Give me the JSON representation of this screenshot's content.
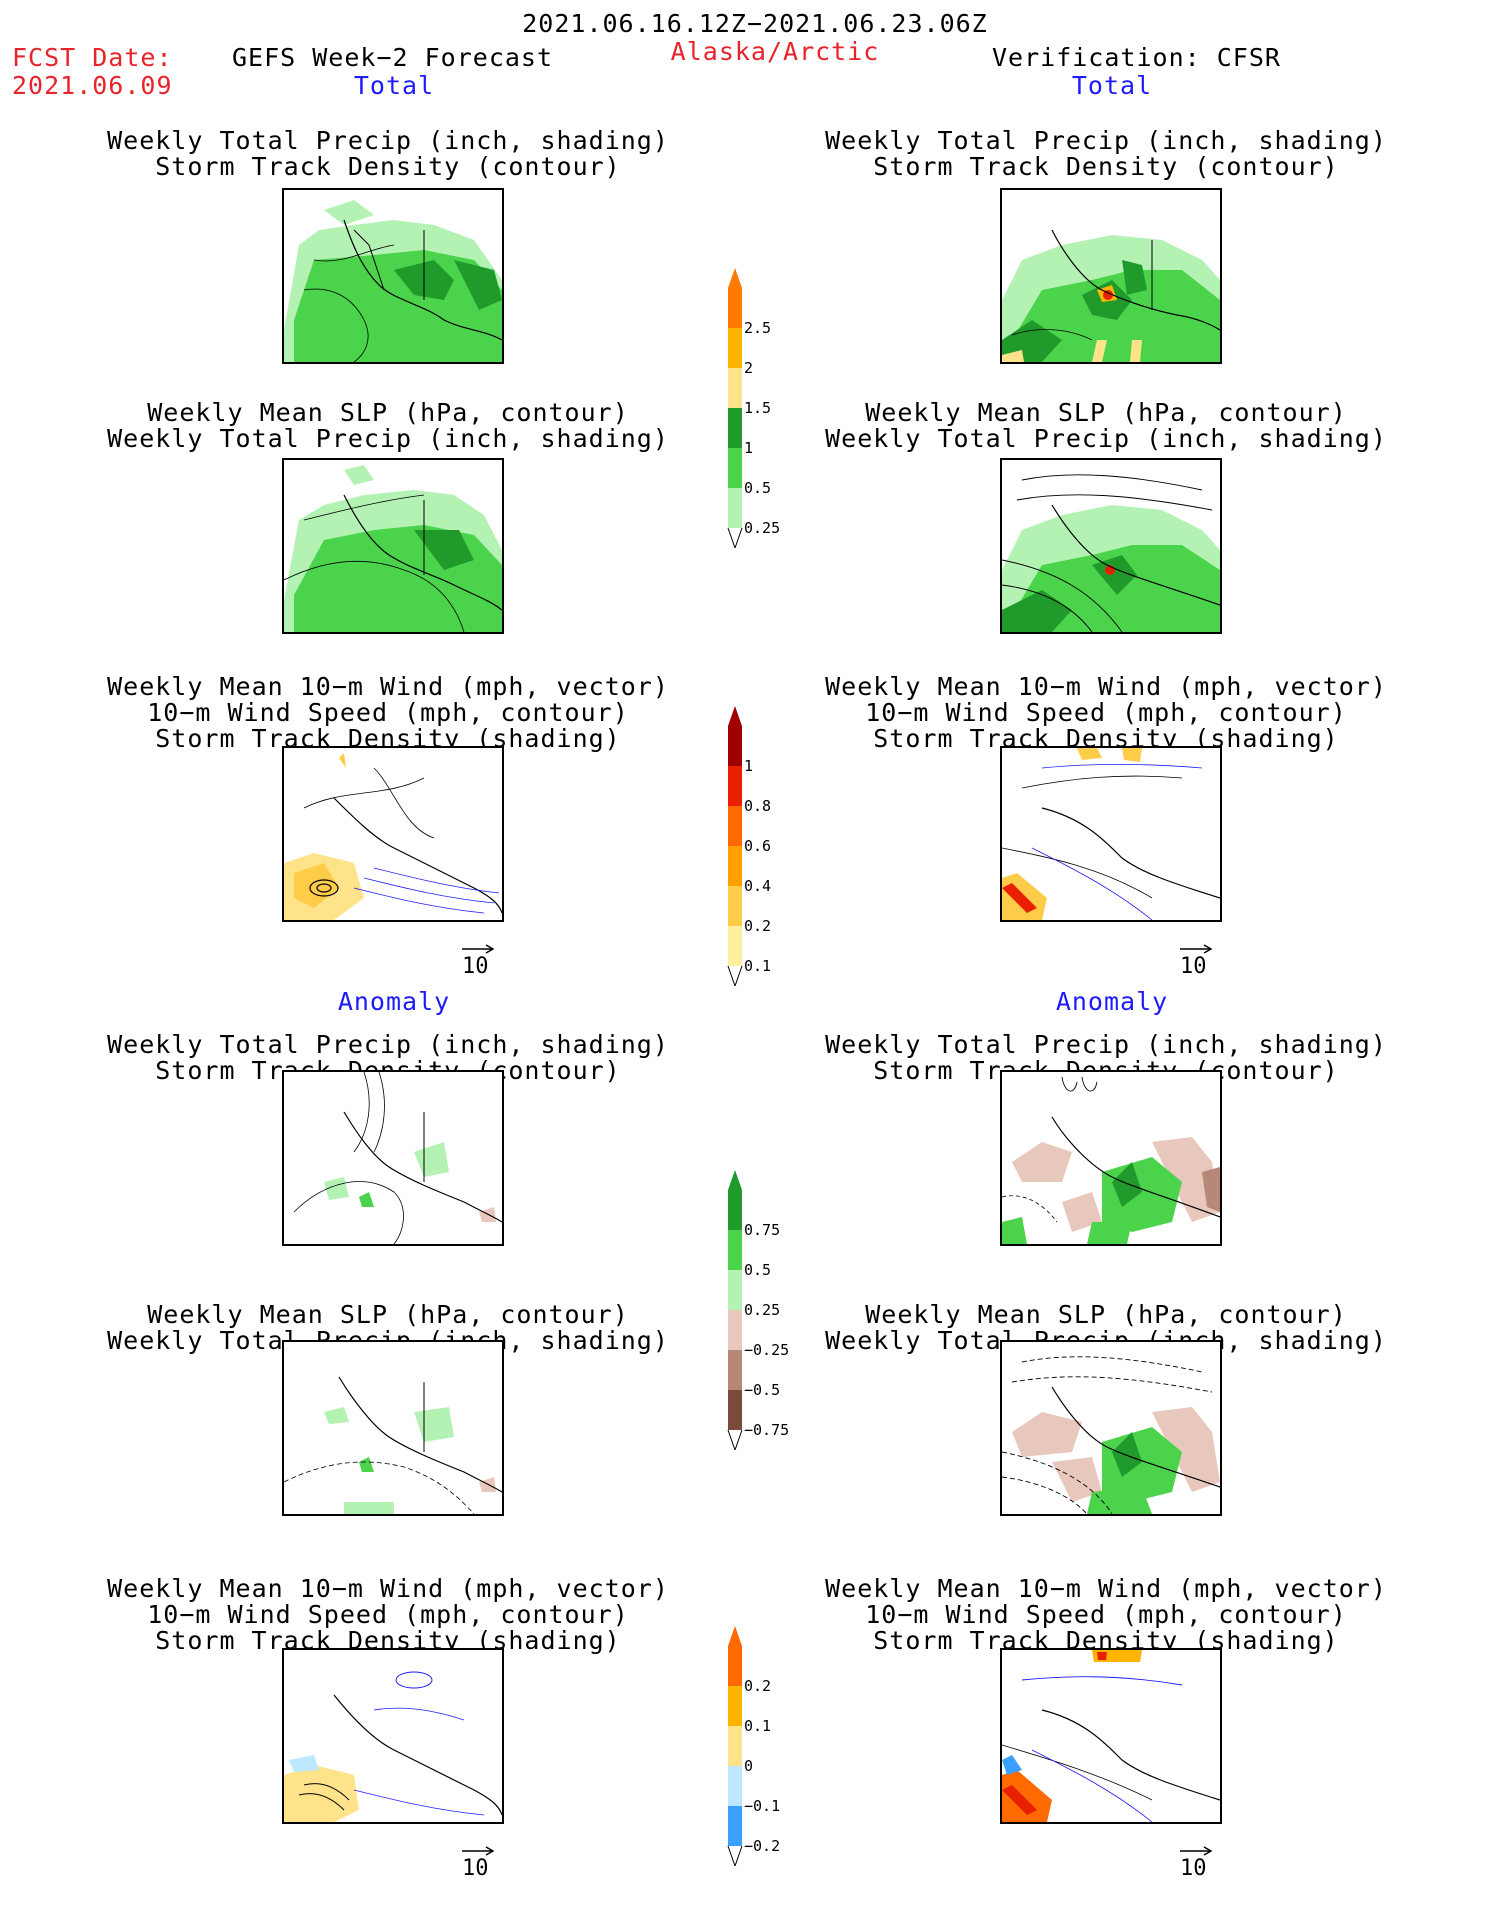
{
  "header": {
    "period": "2021.06.16.12Z−2021.06.23.06Z",
    "fcst_label": "FCST Date:",
    "fcst_date": "2021.06.09",
    "model": "GEFS Week−2 Forecast",
    "region": "Alaska/Arctic",
    "verification": "Verification: CFSR"
  },
  "sections": {
    "total": "Total",
    "anomaly": "Anomaly"
  },
  "panel_titles": {
    "precip_track": [
      "Weekly Total Precip (inch, shading)",
      "Storm Track Density (contour)"
    ],
    "slp_precip": [
      "Weekly Mean SLP (hPa, contour)",
      "Weekly Total Precip (inch, shading)"
    ],
    "wind_track": [
      "Weekly Mean 10−m Wind (mph, vector)",
      "10−m Wind Speed (mph, contour)",
      "Storm Track Density (shading)"
    ]
  },
  "vector_ref": "10",
  "colorbars": {
    "precip_total": {
      "labels": [
        "2.5",
        "2",
        "1.5",
        "1",
        "0.5",
        "0.25"
      ],
      "colors": [
        "#ff7a00",
        "#ffb400",
        "#ffe38a",
        "#1f9a2b",
        "#4cd34c",
        "#b4f2b4"
      ]
    },
    "track_total": {
      "labels": [
        "1",
        "0.8",
        "0.6",
        "0.4",
        "0.2",
        "0.1"
      ],
      "colors": [
        "#a00000",
        "#e82000",
        "#ff6a00",
        "#ffa000",
        "#ffcc4a",
        "#fff0a0"
      ]
    },
    "precip_anom": {
      "labels": [
        "0.75",
        "0.5",
        "0.25",
        "−0.25",
        "−0.5",
        "−0.75"
      ],
      "colors": [
        "#1f9a2b",
        "#4cd34c",
        "#b4f2b4",
        "#e8c8bc",
        "#b78878",
        "#7a4a3c"
      ]
    },
    "track_anom": {
      "labels": [
        "0.2",
        "0.1",
        "0",
        "−0.1",
        "−0.2"
      ],
      "colors": [
        "#ff6a00",
        "#ffb400",
        "#ffe38a",
        "#bde8ff",
        "#3aa0ff"
      ]
    }
  }
}
